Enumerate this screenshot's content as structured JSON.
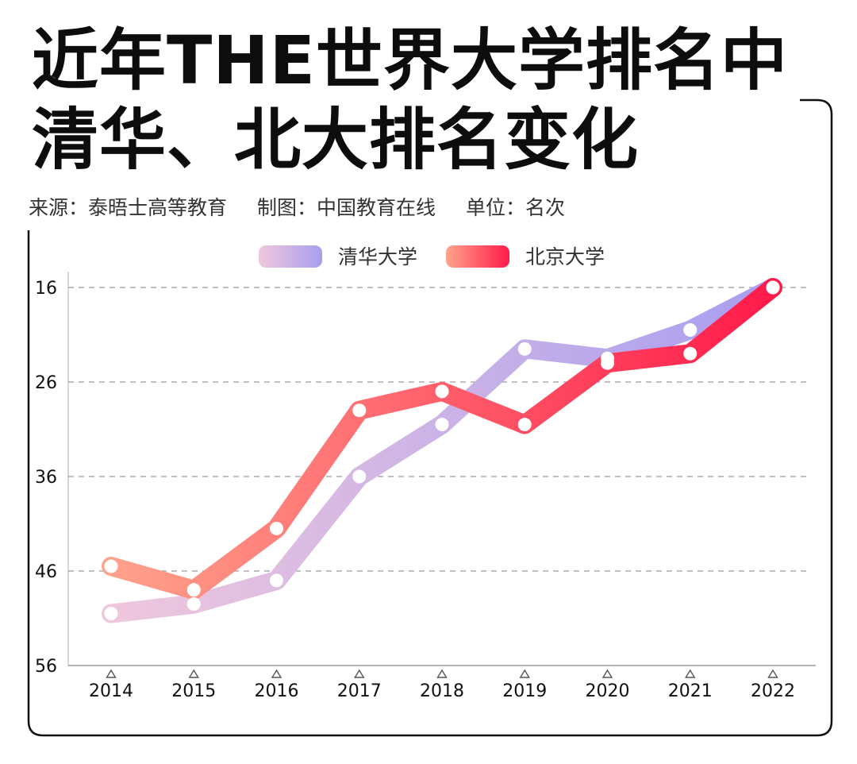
{
  "title_lines": [
    "近年THE世界大学排名中",
    "清华、北大排名变化"
  ],
  "meta": {
    "source": "来源：泰晤士高等教育",
    "made_by": "制图：中国教育在线",
    "unit": "单位：名次"
  },
  "colors": {
    "tsinghua_start": "#f0c8dc",
    "tsinghua_end": "#a89ef0",
    "pku_start": "#ffa48c",
    "pku_end": "#ff1a4a",
    "grid": "#9a9a9a",
    "frame": "#111111"
  },
  "chart_data": {
    "type": "line",
    "x": [
      "2014",
      "2015",
      "2016",
      "2017",
      "2018",
      "2019",
      "2020",
      "2021",
      "2022"
    ],
    "y_ticks": [
      "16",
      "26",
      "36",
      "46",
      "56"
    ],
    "ylim": [
      16,
      56
    ],
    "y_inverted": true,
    "grid": "horizontal dashed",
    "legend_position": "top-center",
    "series": [
      {
        "name": "清华大学",
        "values": [
          50.5,
          49.5,
          47.0,
          36.0,
          30.5,
          22.5,
          23.5,
          20.5,
          16.0
        ]
      },
      {
        "name": "北京大学",
        "values": [
          45.5,
          48.0,
          41.5,
          29.0,
          27.0,
          30.5,
          24.0,
          23.0,
          16.0
        ]
      }
    ]
  }
}
